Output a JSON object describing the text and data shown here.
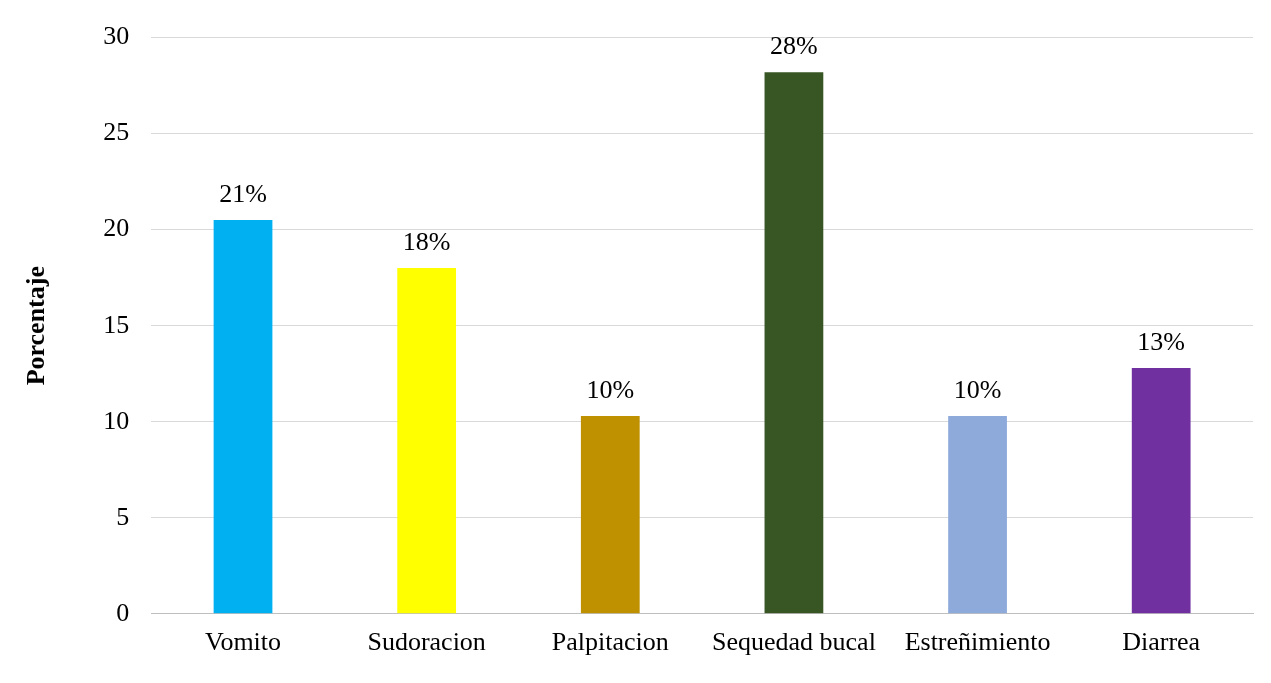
{
  "chart_data": {
    "type": "bar",
    "ylabel": "Porcentaje",
    "categories": [
      "Vomito",
      "Sudoracion",
      "Palpitacion",
      "Sequedad bucal",
      "Estreñimiento",
      "Diarrea"
    ],
    "values": [
      20.5,
      18.0,
      10.3,
      28.2,
      10.3,
      12.8
    ],
    "colors": [
      "#00b0f0",
      "#ffff00",
      "#bf9000",
      "#375623",
      "#8eaadb",
      "#7030a0"
    ],
    "value_labels": [
      "21%",
      "18%",
      "10%",
      "28%",
      "10%",
      "13%"
    ],
    "ylim": [
      0,
      30
    ],
    "yticks": [
      0,
      5,
      10,
      15,
      20,
      25,
      30
    ],
    "grid": "y",
    "legend": false
  }
}
